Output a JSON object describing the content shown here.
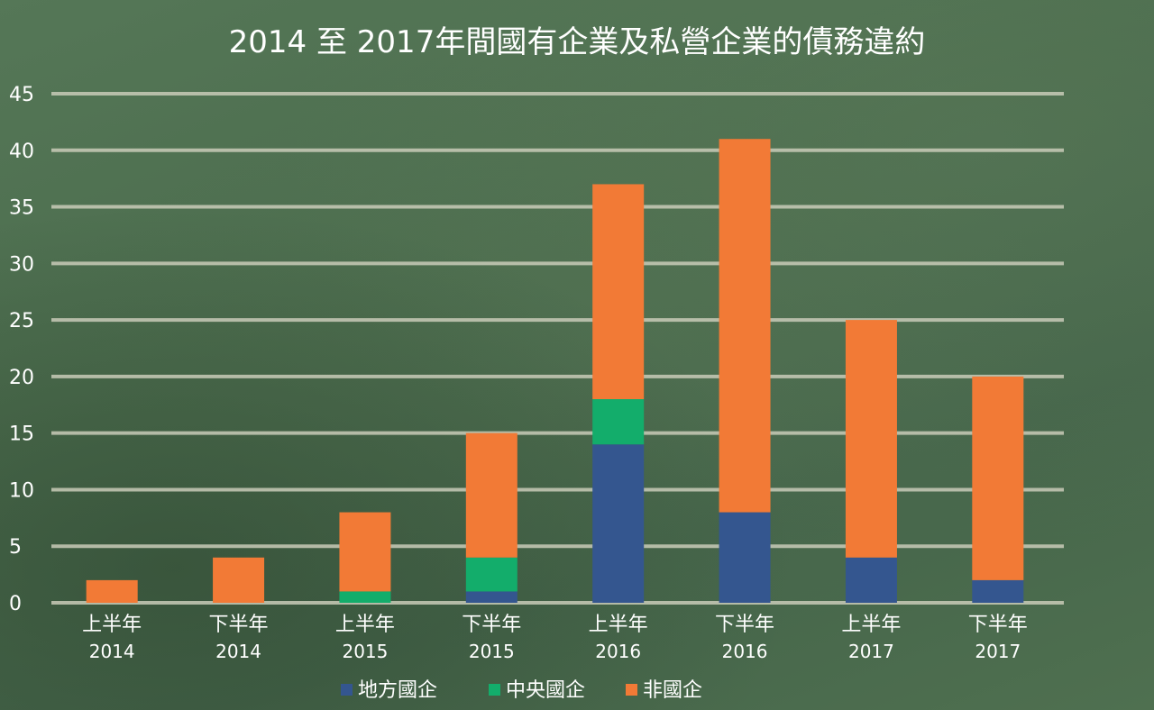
{
  "chart_data": {
    "type": "bar",
    "stacked": true,
    "title": "2014 至 2017年間國有企業及私營企業的債務違約",
    "categories": [
      [
        "上半年",
        "2014"
      ],
      [
        "下半年",
        "2014"
      ],
      [
        "上半年",
        "2015"
      ],
      [
        "下半年",
        "2015"
      ],
      [
        "上半年",
        "2016"
      ],
      [
        "下半年",
        "2016"
      ],
      [
        "上半年",
        "2017"
      ],
      [
        "下半年",
        "2017"
      ]
    ],
    "series": [
      {
        "name": "地方國企",
        "color": "#34568f",
        "values": [
          0,
          0,
          0,
          1,
          14,
          8,
          4,
          2
        ]
      },
      {
        "name": "中央國企",
        "color": "#13ad6b",
        "values": [
          0,
          0,
          1,
          3,
          4,
          0,
          0,
          0
        ]
      },
      {
        "name": "非國企",
        "color": "#f27a36",
        "values": [
          2,
          4,
          7,
          11,
          19,
          33,
          21,
          18
        ]
      }
    ],
    "ylim": [
      0,
      45
    ],
    "yticks": [
      0,
      5,
      10,
      15,
      20,
      25,
      30,
      35,
      40,
      45
    ],
    "grid": true,
    "legend_position": "bottom"
  }
}
